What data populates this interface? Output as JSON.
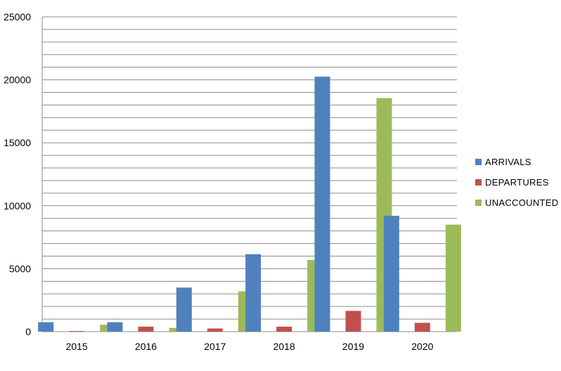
{
  "chart_data": {
    "type": "bar",
    "title": "",
    "xlabel": "",
    "ylabel": "",
    "categories": [
      "2015",
      "2016",
      "2017",
      "2018",
      "2019",
      "2020"
    ],
    "series": [
      {
        "name": "ARRIVALS",
        "color": "#4F81BD",
        "values": [
          750,
          750,
          3500,
          6150,
          20250,
          9200
        ]
      },
      {
        "name": "DEPARTURES",
        "color": "#C0504D",
        "values": [
          50,
          400,
          250,
          400,
          1650,
          700
        ]
      },
      {
        "name": "UNACCOUNTED",
        "color": "#9BBB59",
        "values": [
          550,
          300,
          3200,
          5700,
          18550,
          8500
        ]
      }
    ],
    "ylim": [
      0,
      25000
    ],
    "y_ticks": [
      "0",
      "5000",
      "10000",
      "15000",
      "20000",
      "25000"
    ],
    "y_gridline_step": 1000,
    "grid": true,
    "legend_position": "right"
  }
}
